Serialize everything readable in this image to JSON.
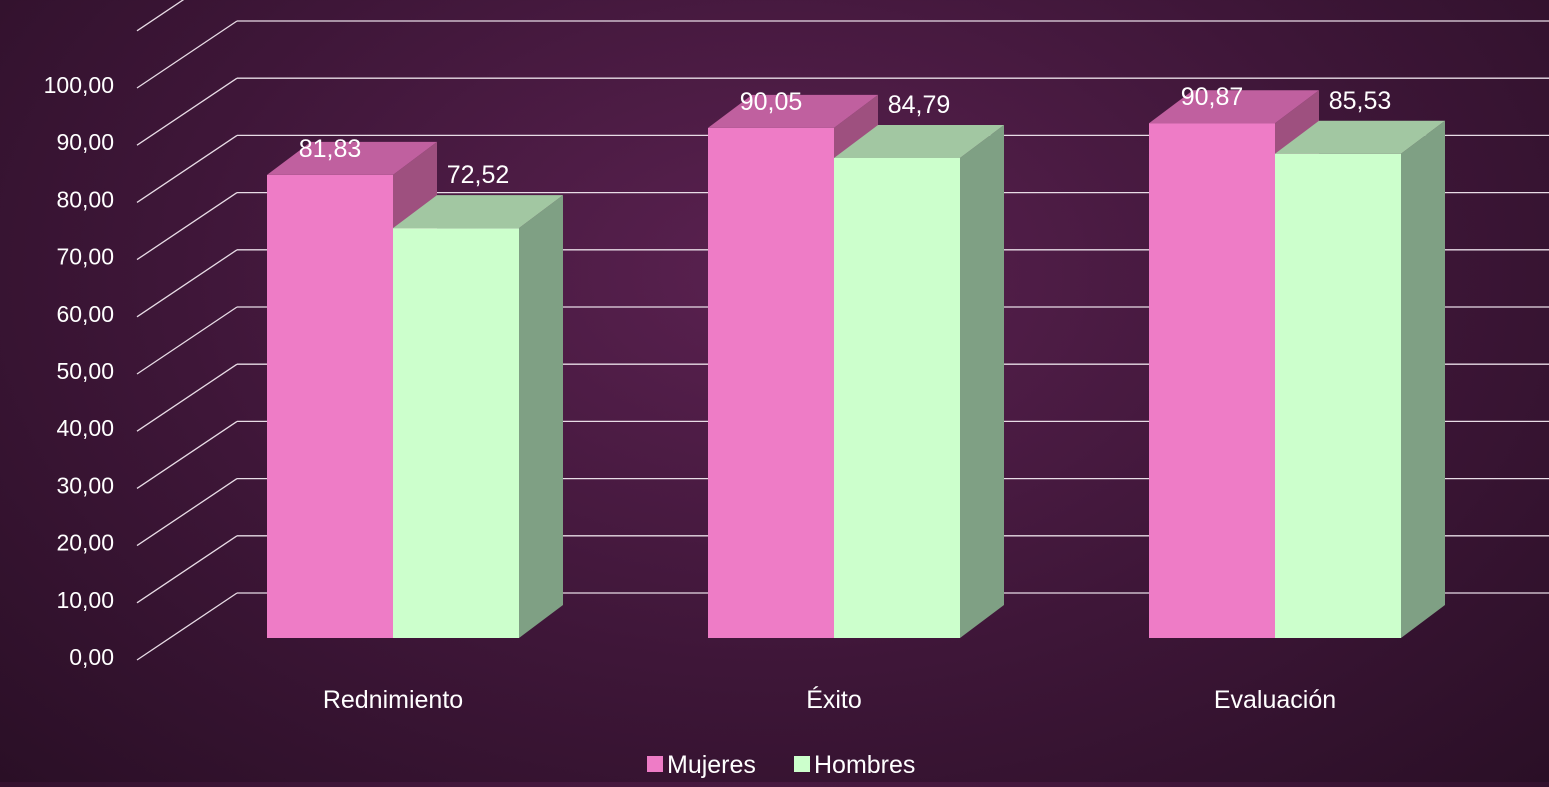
{
  "chart_data": {
    "type": "bar",
    "categories": [
      "Rednimiento",
      "Éxito",
      "Evaluación"
    ],
    "series": [
      {
        "name": "Mujeres",
        "values": [
          81.83,
          90.05,
          90.87
        ]
      },
      {
        "name": "Hombres",
        "values": [
          72.52,
          84.79,
          85.53
        ]
      }
    ],
    "data_labels": [
      [
        "81,83",
        "90,05",
        "90,87"
      ],
      [
        "72,52",
        "84,79",
        "85,53"
      ]
    ],
    "y_ticks": [
      "0,00",
      "10,00",
      "20,00",
      "30,00",
      "40,00",
      "50,00",
      "60,00",
      "70,00",
      "80,00",
      "90,00",
      "100,00"
    ],
    "ylim": [
      0,
      110
    ],
    "grid": true,
    "legend": "bottom",
    "style_3d": true
  },
  "colors": {
    "mujeres": "#ee7cc6",
    "mujeres_side": "#9e507f",
    "mujeres_top": "#c0609f",
    "hombres": "#ccffcc",
    "hombres_side": "#7fa084",
    "hombres_top": "#a2c7a2",
    "gridline": "#e8dce6",
    "text": "#ffffff"
  }
}
